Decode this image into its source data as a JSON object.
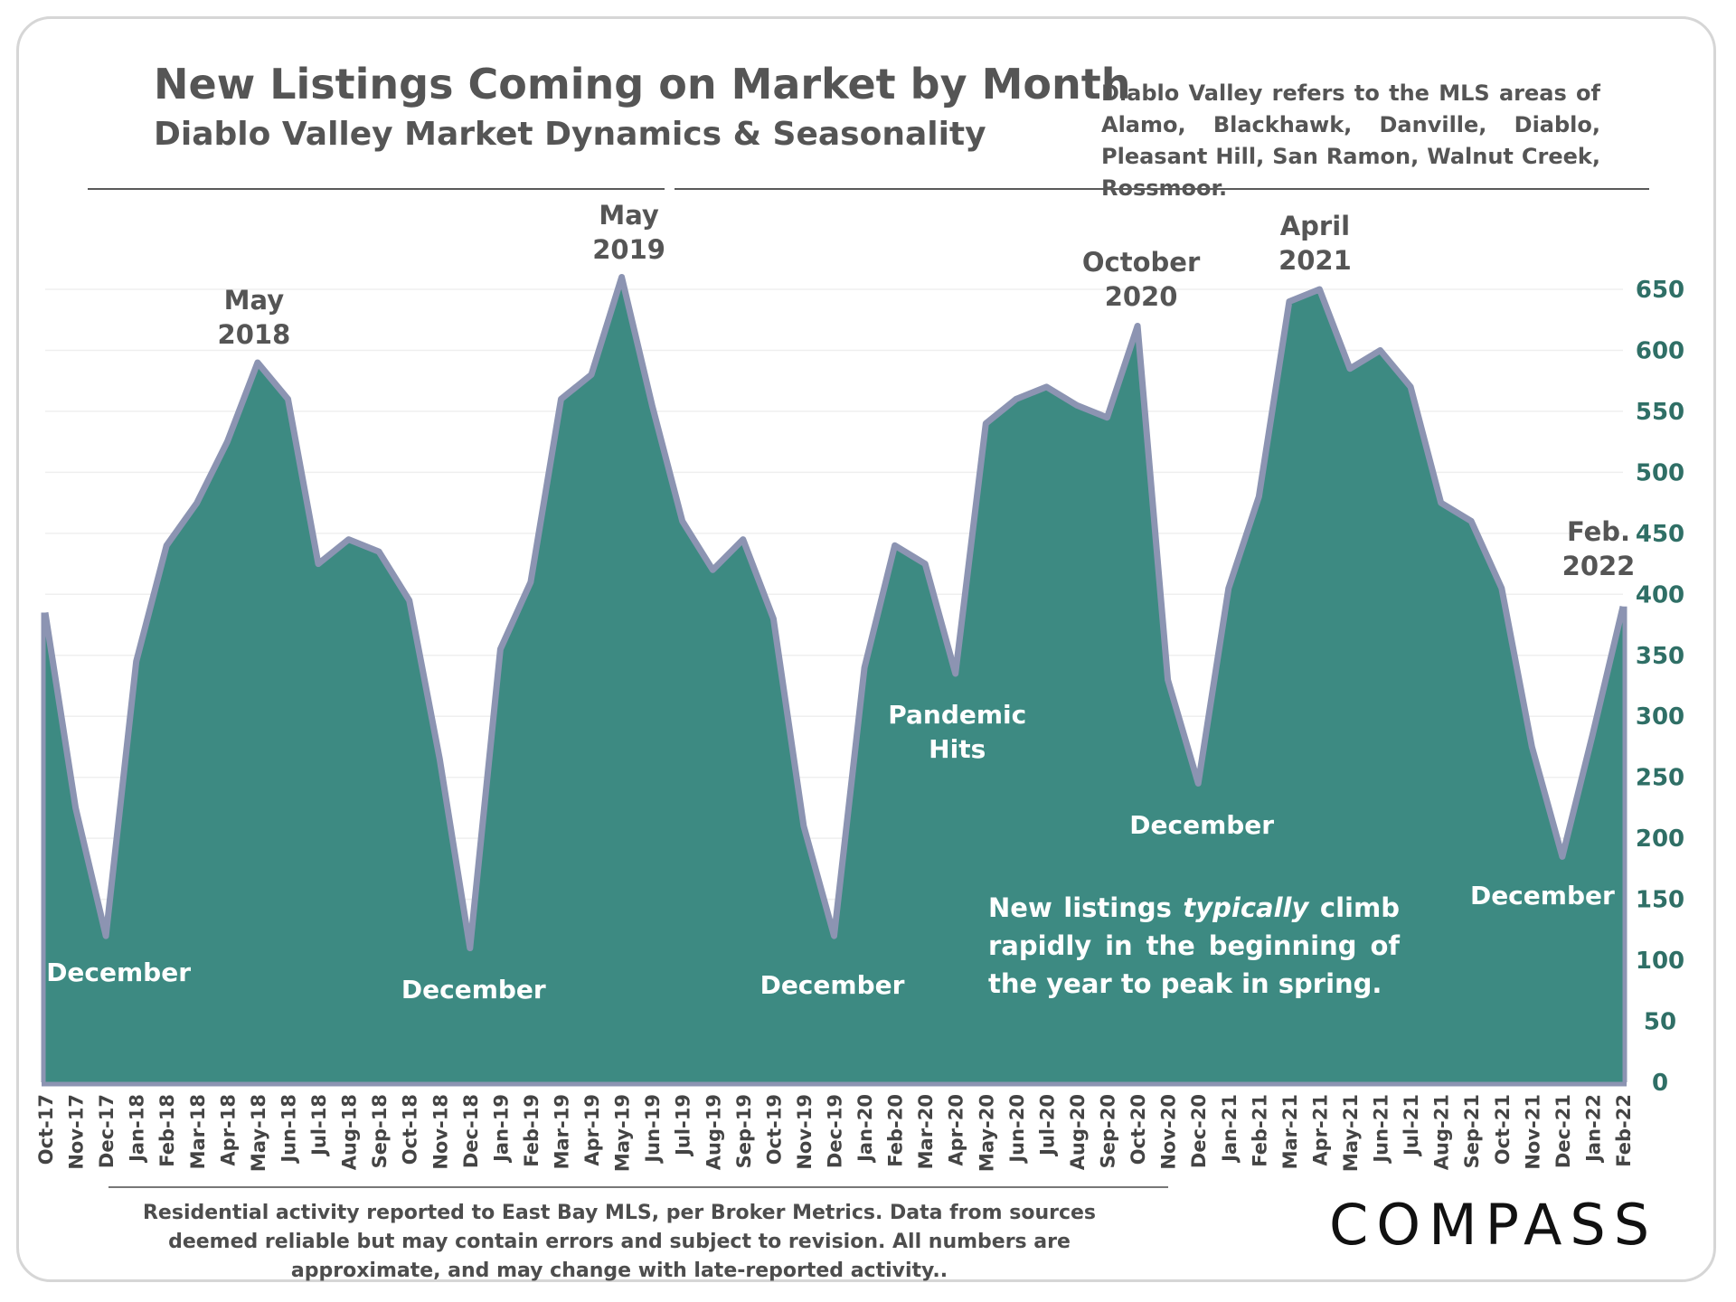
{
  "header": {
    "title": "New Listings Coming on Market by Month",
    "subtitle": "Diablo Valley Market Dynamics & Seasonality",
    "note": "Diablo Valley refers to the MLS areas of Alamo, Blackhawk, Danville, Diablo, Pleasant Hill, San Ramon, Walnut Creek, Rossmoor."
  },
  "callout": {
    "before": "New listings ",
    "emphasis": "typically",
    "after": " climb rapidly in the beginning of the year to peak in spring."
  },
  "footer": {
    "disclaimer": "Residential activity reported to East Bay MLS, per Broker Metrics. Data from sources deemed reliable but may contain errors and subject to revision. All numbers are approximate, and may change with late-reported activity..",
    "logo": "COMPASS"
  },
  "colors": {
    "area_fill": "#3d8a82",
    "area_line": "#8c94b2",
    "axis_text": "#2f6f66",
    "annotation_dark": "#555555",
    "annotation_light": "#ffffff"
  },
  "chart_data": {
    "type": "area",
    "title": "New Listings Coming on Market by Month",
    "subtitle": "Diablo Valley Market Dynamics & Seasonality",
    "x": [
      "Oct-17",
      "Nov-17",
      "Dec-17",
      "Jan-18",
      "Feb-18",
      "Mar-18",
      "Apr-18",
      "May-18",
      "Jun-18",
      "Jul-18",
      "Aug-18",
      "Sep-18",
      "Oct-18",
      "Nov-18",
      "Dec-18",
      "Jan-19",
      "Feb-19",
      "Mar-19",
      "Apr-19",
      "May-19",
      "Jun-19",
      "Jul-19",
      "Aug-19",
      "Sep-19",
      "Oct-19",
      "Nov-19",
      "Dec-19",
      "Jan-20",
      "Feb-20",
      "Mar-20",
      "Apr-20",
      "May-20",
      "Jun-20",
      "Jul-20",
      "Aug-20",
      "Sep-20",
      "Oct-20",
      "Nov-20",
      "Dec-20",
      "Jan-21",
      "Feb-21",
      "Mar-21",
      "Apr-21",
      "May-21",
      "Jun-21",
      "Jul-21",
      "Aug-21",
      "Sep-21",
      "Oct-21",
      "Nov-21",
      "Dec-21",
      "Jan-22",
      "Feb-22"
    ],
    "values": [
      385,
      225,
      120,
      345,
      440,
      475,
      525,
      590,
      560,
      425,
      445,
      435,
      395,
      265,
      110,
      355,
      410,
      560,
      580,
      660,
      555,
      460,
      420,
      445,
      380,
      210,
      120,
      340,
      440,
      425,
      335,
      540,
      560,
      570,
      555,
      545,
      620,
      330,
      245,
      405,
      480,
      640,
      650,
      585,
      600,
      570,
      475,
      460,
      405,
      275,
      185,
      285,
      390
    ],
    "yaxis": {
      "min": 0,
      "max": 650,
      "ticks": [
        0,
        50,
        100,
        150,
        200,
        250,
        300,
        350,
        400,
        450,
        500,
        550,
        600,
        650
      ],
      "position": "right"
    },
    "xlabel": "",
    "ylabel": "",
    "annotations": [
      {
        "text": [
          "May",
          "2018"
        ],
        "index": 7,
        "style": "dark"
      },
      {
        "text": [
          "May",
          "2019"
        ],
        "index": 19,
        "style": "dark"
      },
      {
        "text": [
          "October",
          "2020"
        ],
        "index": 36,
        "style": "dark"
      },
      {
        "text": [
          "April",
          "2021"
        ],
        "index": 42,
        "style": "dark"
      },
      {
        "text": [
          "Feb.",
          "2022"
        ],
        "index": 52,
        "style": "dark"
      },
      {
        "text": [
          "December"
        ],
        "index": 2,
        "style": "light"
      },
      {
        "text": [
          "December"
        ],
        "index": 14,
        "style": "light"
      },
      {
        "text": [
          "December"
        ],
        "index": 26,
        "style": "light"
      },
      {
        "text": [
          "December"
        ],
        "index": 38,
        "style": "light"
      },
      {
        "text": [
          "December"
        ],
        "index": 50,
        "style": "light"
      },
      {
        "text": [
          "Pandemic",
          "Hits"
        ],
        "index": 30,
        "style": "light"
      }
    ]
  }
}
